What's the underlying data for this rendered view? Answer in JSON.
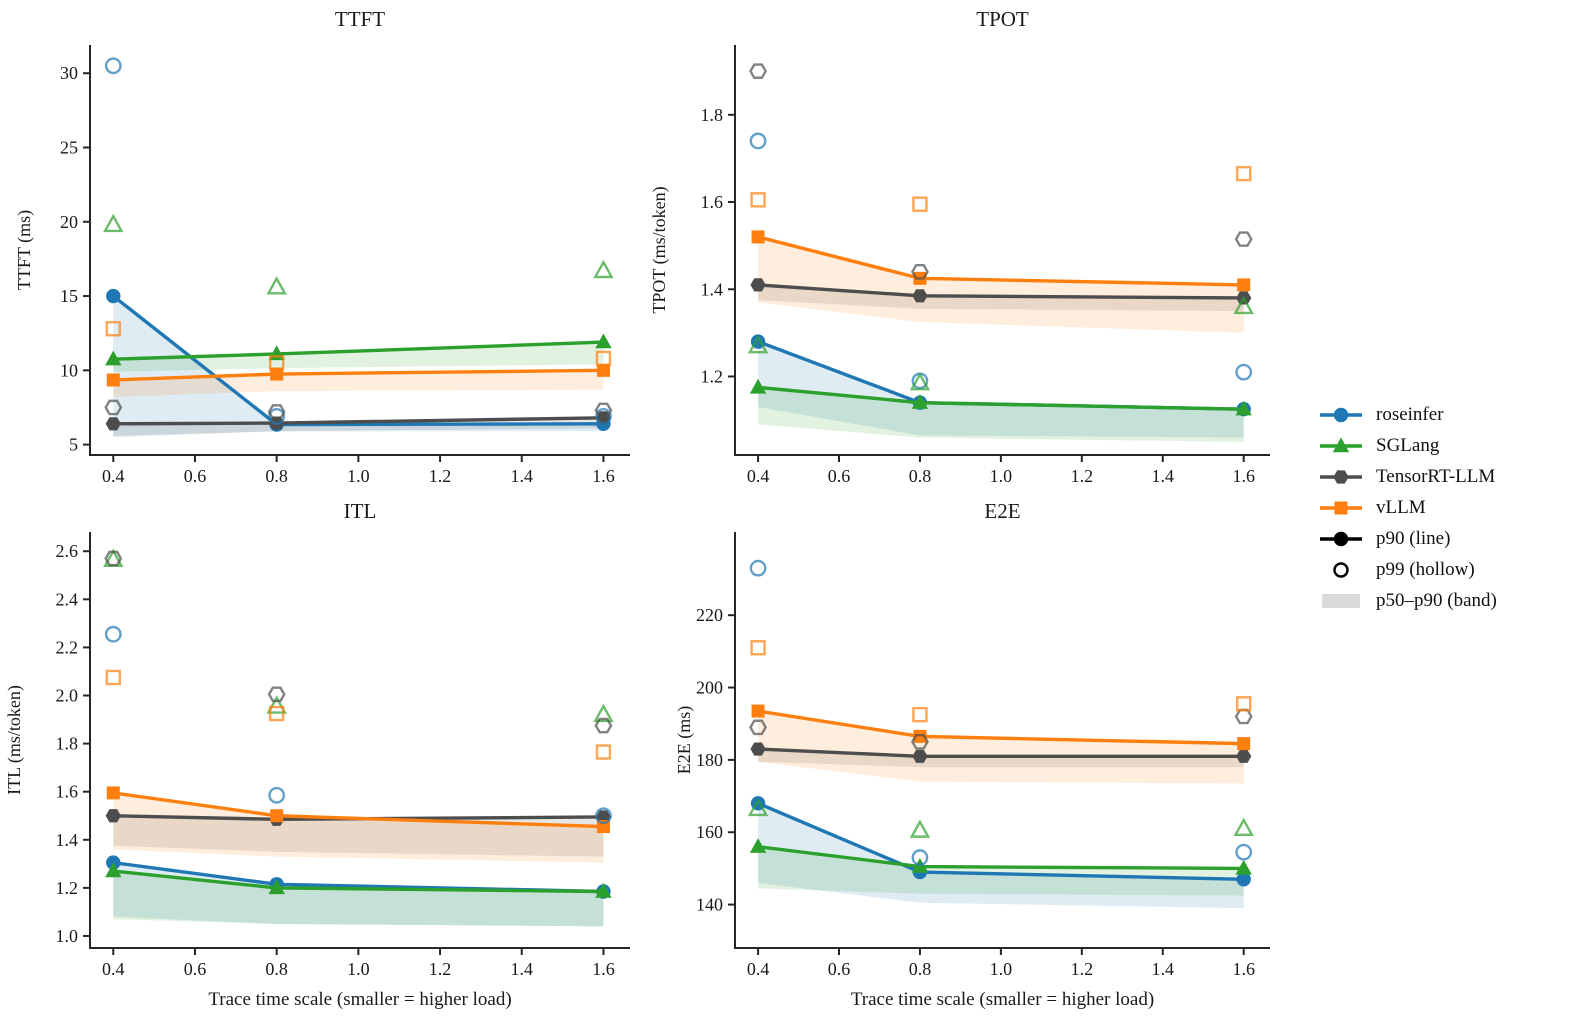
{
  "figure": {
    "background": "#ffffff"
  },
  "legend": {
    "items": [
      {
        "label": "roseinfer",
        "marker": "circle",
        "color": "#1f77b4",
        "kind": "series"
      },
      {
        "label": "SGLang",
        "marker": "triangle",
        "color": "#2ca02c",
        "kind": "series"
      },
      {
        "label": "TensorRT-LLM",
        "marker": "hexagon",
        "color": "#4d4d4d",
        "kind": "series"
      },
      {
        "label": "vLLM",
        "marker": "square",
        "color": "#ff7f0e",
        "kind": "series"
      },
      {
        "label": "p90 (line)",
        "marker": "circle",
        "color": "#000000",
        "kind": "line"
      },
      {
        "label": "p99 (hollow)",
        "marker": "circle",
        "color": "#000000",
        "kind": "hollow"
      },
      {
        "label": "p50–p90 (band)",
        "marker": "band",
        "color": "#d9d9d9",
        "kind": "band"
      }
    ]
  },
  "chart_data": [
    {
      "type": "line",
      "title": "TTFT",
      "ylabel": "TTFT (ms)",
      "xlabel": "",
      "x": [
        0.4,
        0.8,
        1.6
      ],
      "xlim": [
        0.343,
        1.665
      ],
      "ylim": [
        4.3,
        31.9
      ],
      "xticks": [
        0.4,
        0.6,
        0.8,
        1.0,
        1.2,
        1.4,
        1.6
      ],
      "xticklabels": [
        "0.4",
        "0.6",
        "0.8",
        "1.0",
        "1.2",
        "1.4",
        "1.6"
      ],
      "yticks": [
        5,
        10,
        15,
        20,
        25,
        30
      ],
      "yticklabels": [
        "5",
        "10",
        "15",
        "20",
        "25",
        "30"
      ],
      "legend_position": "outside-right",
      "grid": false,
      "series": [
        {
          "name": "roseinfer",
          "color": "#1f77b4",
          "marker": "circle",
          "p50": [
            5.6,
            5.9,
            5.9
          ],
          "p90": [
            15.0,
            6.35,
            6.4
          ],
          "p99": [
            30.5,
            6.9,
            6.9
          ]
        },
        {
          "name": "SGLang",
          "color": "#2ca02c",
          "marker": "triangle",
          "p50": [
            9.9,
            10.15,
            10.4
          ],
          "p90": [
            10.75,
            11.1,
            11.9
          ],
          "p99": [
            19.8,
            15.6,
            16.7
          ]
        },
        {
          "name": "TensorRT-LLM",
          "color": "#4d4d4d",
          "marker": "hexagon",
          "p50": [
            5.5,
            5.9,
            6.1
          ],
          "p90": [
            6.4,
            6.45,
            6.8
          ],
          "p99": [
            7.5,
            7.2,
            7.3
          ]
        },
        {
          "name": "vLLM",
          "color": "#ff7f0e",
          "marker": "square",
          "p50": [
            8.2,
            8.6,
            8.7
          ],
          "p90": [
            9.35,
            9.75,
            10.0
          ],
          "p99": [
            12.8,
            10.5,
            10.8
          ]
        }
      ]
    },
    {
      "type": "line",
      "title": "TPOT",
      "ylabel": "TPOT (ms/token)",
      "xlabel": "",
      "x": [
        0.4,
        0.8,
        1.6
      ],
      "xlim": [
        0.343,
        1.665
      ],
      "ylim": [
        1.02,
        1.96
      ],
      "xticks": [
        0.4,
        0.6,
        0.8,
        1.0,
        1.2,
        1.4,
        1.6
      ],
      "xticklabels": [
        "0.4",
        "0.6",
        "0.8",
        "1.0",
        "1.2",
        "1.4",
        "1.6"
      ],
      "yticks": [
        1.2,
        1.4,
        1.6,
        1.8
      ],
      "yticklabels": [
        "1.2",
        "1.4",
        "1.6",
        "1.8"
      ],
      "grid": false,
      "series": [
        {
          "name": "roseinfer",
          "color": "#1f77b4",
          "marker": "circle",
          "p50": [
            1.13,
            1.065,
            1.06
          ],
          "p90": [
            1.28,
            1.14,
            1.125
          ],
          "p99": [
            1.74,
            1.19,
            1.21
          ]
        },
        {
          "name": "SGLang",
          "color": "#2ca02c",
          "marker": "triangle",
          "p50": [
            1.09,
            1.06,
            1.05
          ],
          "p90": [
            1.175,
            1.14,
            1.125
          ],
          "p99": [
            1.27,
            1.185,
            1.36
          ]
        },
        {
          "name": "TensorRT-LLM",
          "color": "#4d4d4d",
          "marker": "hexagon",
          "p50": [
            1.375,
            1.355,
            1.35
          ],
          "p90": [
            1.41,
            1.385,
            1.38
          ],
          "p99": [
            1.9,
            1.44,
            1.515
          ]
        },
        {
          "name": "vLLM",
          "color": "#ff7f0e",
          "marker": "square",
          "p50": [
            1.37,
            1.325,
            1.3
          ],
          "p90": [
            1.52,
            1.425,
            1.41
          ],
          "p99": [
            1.605,
            1.595,
            1.665
          ]
        }
      ]
    },
    {
      "type": "line",
      "title": "ITL",
      "ylabel": "ITL (ms/token)",
      "xlabel": "Trace time scale (smaller = higher load)",
      "x": [
        0.4,
        0.8,
        1.6
      ],
      "xlim": [
        0.343,
        1.665
      ],
      "ylim": [
        0.95,
        2.68
      ],
      "xticks": [
        0.4,
        0.6,
        0.8,
        1.0,
        1.2,
        1.4,
        1.6
      ],
      "xticklabels": [
        "0.4",
        "0.6",
        "0.8",
        "1.0",
        "1.2",
        "1.4",
        "1.6"
      ],
      "yticks": [
        1.0,
        1.2,
        1.4,
        1.6,
        1.8,
        2.0,
        2.2,
        2.4,
        2.6
      ],
      "yticklabels": [
        "1.0",
        "1.2",
        "1.4",
        "1.6",
        "1.8",
        "2.0",
        "2.2",
        "2.4",
        "2.6"
      ],
      "grid": false,
      "series": [
        {
          "name": "roseinfer",
          "color": "#1f77b4",
          "marker": "circle",
          "p50": [
            1.08,
            1.05,
            1.04
          ],
          "p90": [
            1.305,
            1.215,
            1.185
          ],
          "p99": [
            2.255,
            1.585,
            1.5
          ]
        },
        {
          "name": "SGLang",
          "color": "#2ca02c",
          "marker": "triangle",
          "p50": [
            1.07,
            1.05,
            1.04
          ],
          "p90": [
            1.27,
            1.2,
            1.185
          ],
          "p99": [
            2.565,
            1.955,
            1.92
          ]
        },
        {
          "name": "TensorRT-LLM",
          "color": "#4d4d4d",
          "marker": "hexagon",
          "p50": [
            1.375,
            1.35,
            1.33
          ],
          "p90": [
            1.5,
            1.485,
            1.495
          ],
          "p99": [
            2.57,
            2.005,
            1.875
          ]
        },
        {
          "name": "vLLM",
          "color": "#ff7f0e",
          "marker": "square",
          "p50": [
            1.36,
            1.33,
            1.305
          ],
          "p90": [
            1.595,
            1.5,
            1.455
          ],
          "p99": [
            2.075,
            1.925,
            1.765
          ]
        }
      ]
    },
    {
      "type": "line",
      "title": "E2E",
      "ylabel": "E2E (ms)",
      "xlabel": "Trace time scale (smaller = higher load)",
      "x": [
        0.4,
        0.8,
        1.6
      ],
      "xlim": [
        0.343,
        1.665
      ],
      "ylim": [
        128,
        243
      ],
      "xticks": [
        0.4,
        0.6,
        0.8,
        1.0,
        1.2,
        1.4,
        1.6
      ],
      "xticklabels": [
        "0.4",
        "0.6",
        "0.8",
        "1.0",
        "1.2",
        "1.4",
        "1.6"
      ],
      "yticks": [
        140,
        160,
        180,
        200,
        220
      ],
      "yticklabels": [
        "140",
        "160",
        "180",
        "200",
        "220"
      ],
      "grid": false,
      "series": [
        {
          "name": "roseinfer",
          "color": "#1f77b4",
          "marker": "circle",
          "p50": [
            146,
            140.5,
            139
          ],
          "p90": [
            168,
            149,
            147
          ],
          "p99": [
            233,
            153,
            154.5
          ]
        },
        {
          "name": "SGLang",
          "color": "#2ca02c",
          "marker": "triangle",
          "p50": [
            144.5,
            143,
            142.5
          ],
          "p90": [
            156,
            150.5,
            150
          ],
          "p99": [
            166.5,
            160.5,
            161
          ]
        },
        {
          "name": "TensorRT-LLM",
          "color": "#4d4d4d",
          "marker": "hexagon",
          "p50": [
            179.5,
            178,
            178
          ],
          "p90": [
            183,
            181,
            181
          ],
          "p99": [
            189,
            185,
            192
          ]
        },
        {
          "name": "vLLM",
          "color": "#ff7f0e",
          "marker": "square",
          "p50": [
            179.5,
            174,
            173.5
          ],
          "p90": [
            193.5,
            186.5,
            184.5
          ],
          "p99": [
            211,
            192.5,
            195.5
          ]
        }
      ]
    }
  ]
}
